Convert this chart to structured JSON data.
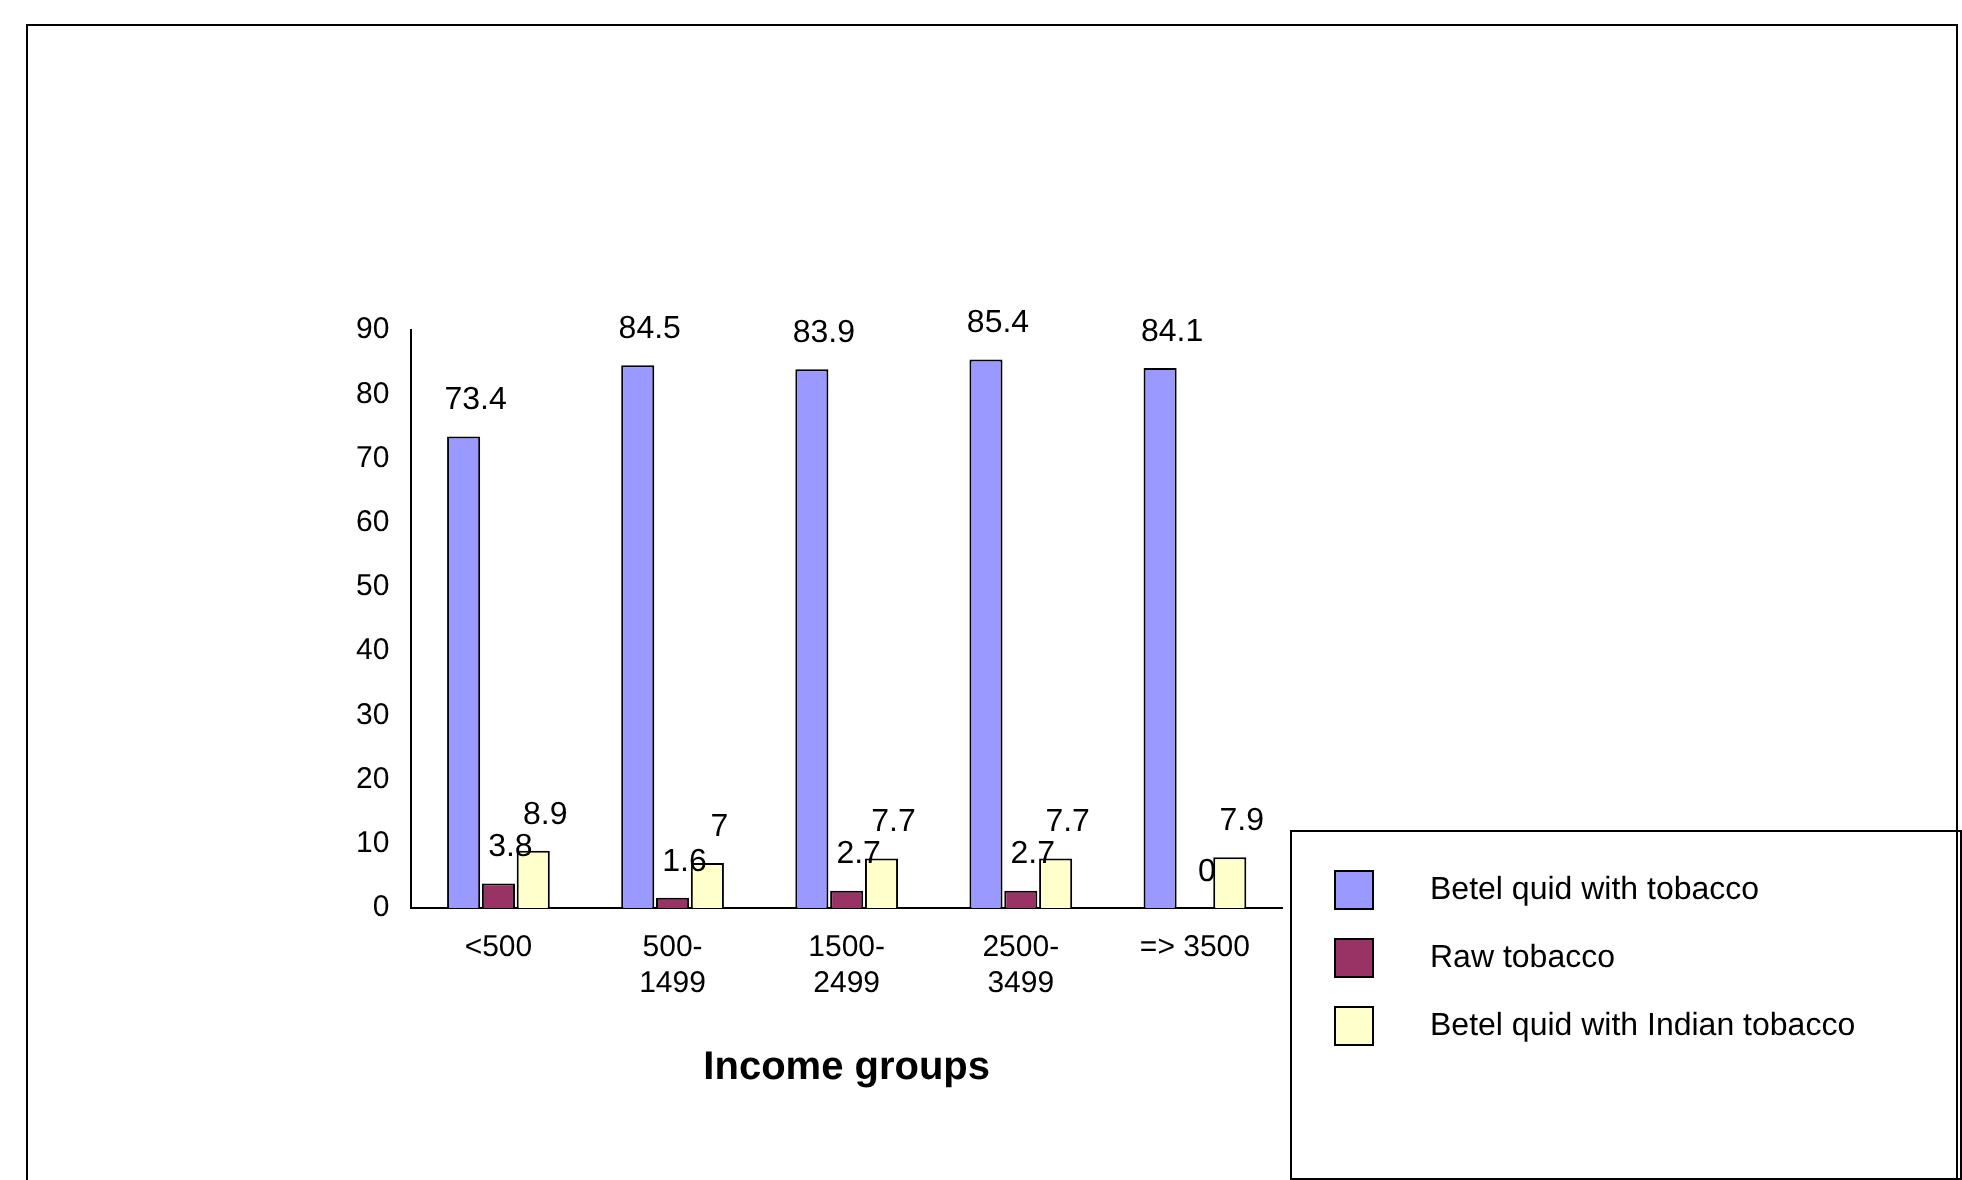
{
  "chart_data": {
    "type": "bar",
    "xlabel": "Income groups",
    "categories": [
      "<500",
      "500-1499",
      "1500-2499",
      "2500-3499",
      "=> 3500"
    ],
    "series": [
      {
        "name": "Betel quid with tobacco",
        "color": "#9999ff",
        "values": [
          73.4,
          84.5,
          83.9,
          85.4,
          84.1
        ]
      },
      {
        "name": "Raw tobacco",
        "color": "#993366",
        "values": [
          3.8,
          1.6,
          2.7,
          2.7,
          0
        ]
      },
      {
        "name": "Betel quid with Indian tobacco",
        "color": "#ffffcc",
        "values": [
          8.9,
          7,
          7.7,
          7.7,
          7.9
        ]
      }
    ],
    "ylim": [
      0,
      90
    ],
    "yticks": [
      0,
      10,
      20,
      30,
      40,
      50,
      60,
      70,
      80,
      90
    ],
    "grid": false,
    "legend": "bottom right",
    "data_labels": true
  }
}
